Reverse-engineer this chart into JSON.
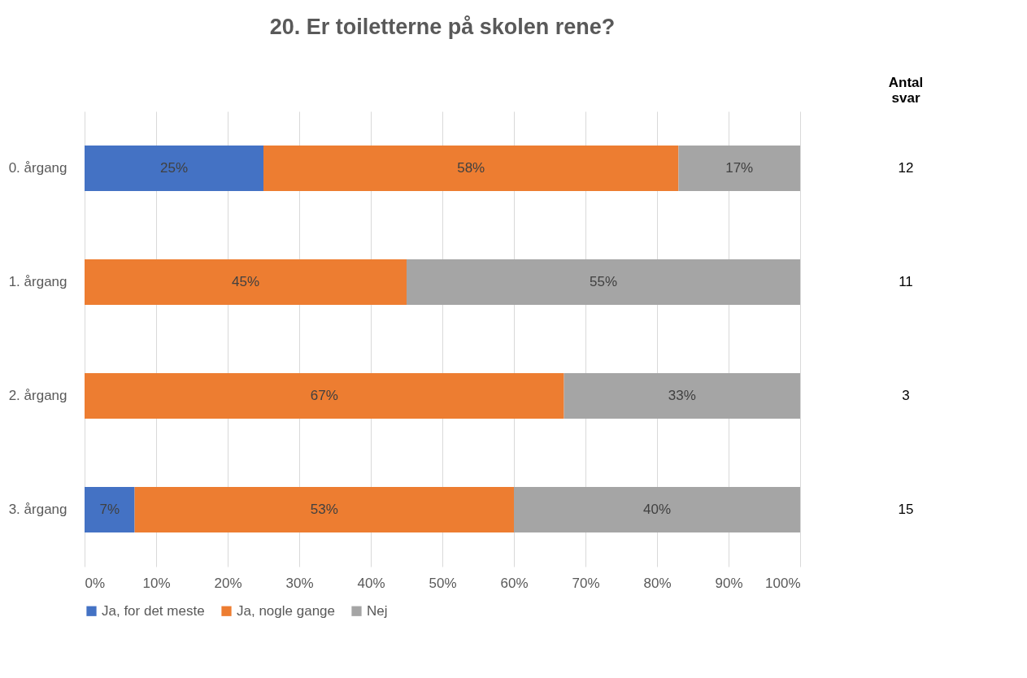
{
  "chart_data": {
    "type": "bar",
    "orientation": "horizontal",
    "stacked": true,
    "title": "20. Er toiletterne på skolen rene?",
    "categories": [
      "0. årgang",
      "1. årgang",
      "2. årgang",
      "3. årgang"
    ],
    "series": [
      {
        "name": "Ja, for det meste",
        "color": "#4472c4",
        "values": [
          25,
          null,
          null,
          7
        ]
      },
      {
        "name": "Ja, nogle gange",
        "color": "#ed7d31",
        "values": [
          58,
          45,
          67,
          53
        ]
      },
      {
        "name": "Nej",
        "color": "#a5a5a5",
        "values": [
          17,
          55,
          33,
          40
        ]
      }
    ],
    "xlim": [
      0,
      100
    ],
    "xticks": [
      {
        "value": 0,
        "label": "0%"
      },
      {
        "value": 10,
        "label": "10%"
      },
      {
        "value": 20,
        "label": "20%"
      },
      {
        "value": 30,
        "label": "30%"
      },
      {
        "value": 40,
        "label": "40%"
      },
      {
        "value": 50,
        "label": "50%"
      },
      {
        "value": 60,
        "label": "60%"
      },
      {
        "value": 70,
        "label": "70%"
      },
      {
        "value": 80,
        "label": "80%"
      },
      {
        "value": 90,
        "label": "90%"
      },
      {
        "value": 100,
        "label": "100%"
      }
    ],
    "value_labels": [
      [
        "25%",
        null,
        null,
        "7%"
      ],
      [
        "58%",
        "45%",
        "67%",
        "53%"
      ],
      [
        "17%",
        "55%",
        "33%",
        "40%"
      ]
    ],
    "annotations": [
      "Antal svar",
      "12",
      "11",
      "3",
      "15"
    ],
    "grid": "x",
    "legend": "bottom"
  }
}
